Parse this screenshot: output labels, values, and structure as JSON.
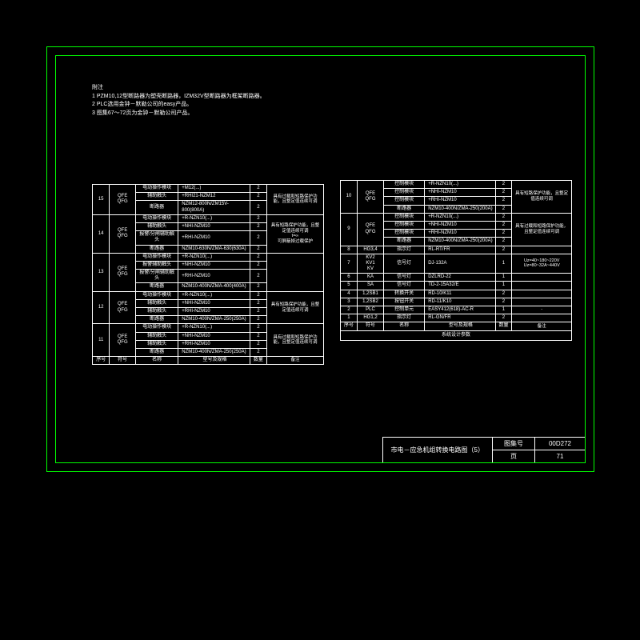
{
  "notes": {
    "title": "附注",
    "lines": [
      "1 PZM10,12型断路器为塑壳断路器，IZM32V型断路器为框架断路器。",
      "2 PLC选用金钟－默勒公司的easy产品。",
      "3 图集67～72页为金钟－默勒公司产品。"
    ]
  },
  "leftTable": {
    "rows": [
      {
        "num": "15",
        "code": "QFE\nQFG",
        "items": [
          {
            "n": "电动操作模块",
            "m": "+M12(...)",
            "q": "2"
          },
          {
            "n": "辅助触头",
            "m": "+RHI21-NZM12",
            "q": "2"
          },
          {
            "n": "断路器",
            "m": "NZM12-800N/ZM15V-800(800A)",
            "q": "2"
          }
        ],
        "remark": "具有过载和短路保护功能，且整定值连续可调"
      },
      {
        "num": "14",
        "code": "QFE\nQFG",
        "items": [
          {
            "n": "电动操作模块",
            "m": "+R-NZN10(...)",
            "q": "2"
          },
          {
            "n": "辅助触头",
            "m": "+NHI-NZM10",
            "q": "2"
          },
          {
            "n": "报警/分闸辅助触头",
            "m": "+RHI-NZM10",
            "q": "2"
          },
          {
            "n": "断路器",
            "m": "NZM10-630N/ZMA-630(630A)",
            "q": "2"
          }
        ],
        "remark": "具有短路保护功能，且整定值连续可调\nt=∞\n可屏蔽掉过载保护"
      },
      {
        "num": "13",
        "code": "QFE\nQFG",
        "items": [
          {
            "n": "电动操作模块",
            "m": "+R-NZN10(...)",
            "q": "2"
          },
          {
            "n": "报警辅助触头",
            "m": "+NHI-NZM10",
            "q": "2"
          },
          {
            "n": "报警/分闸辅助触头",
            "m": "+RHI-NZM10",
            "q": "2"
          },
          {
            "n": "断路器",
            "m": "NZM10-400N/ZMA-400(400A)",
            "q": "2"
          }
        ],
        "remark": ""
      },
      {
        "num": "12",
        "code": "QFE\nQFG",
        "items": [
          {
            "n": "电动操作模块",
            "m": "+R-NZN10(...)",
            "q": "2"
          },
          {
            "n": "辅助触头",
            "m": "+NHI-NZM10",
            "q": "2"
          },
          {
            "n": "辅助触头",
            "m": "+RHI-NZM10",
            "q": "2"
          },
          {
            "n": "断路器",
            "m": "NZM10-400N/ZMA-250(250A)",
            "q": "2"
          }
        ],
        "remark": "具有短路保护功能，且整定值连续可调"
      },
      {
        "num": "11",
        "code": "QFE\nQFG",
        "items": [
          {
            "n": "电动操作模块",
            "m": "+R-NZN10(...)",
            "q": "2"
          },
          {
            "n": "辅助触头",
            "m": "+NHI-NZM10",
            "q": "2"
          },
          {
            "n": "辅助触头",
            "m": "+RHI-NZM10",
            "q": "2"
          },
          {
            "n": "断路器",
            "m": "NZM10-400N/ZMA-250(250A)",
            "q": "2"
          }
        ],
        "remark": "具有过载和短路保护功能，且整定值连续可调"
      }
    ],
    "headers": [
      "序号",
      "符号",
      "名称",
      "型号及规格",
      "数量",
      "备注"
    ]
  },
  "rightTable": {
    "rows": [
      {
        "num": "10",
        "code": "QFE\nQFG",
        "items": [
          {
            "n": "控制模块",
            "m": "+R-NZN10(...)",
            "q": "2"
          },
          {
            "n": "控制模块",
            "m": "+NHI-NZM10",
            "q": "2"
          },
          {
            "n": "控制模块",
            "m": "+RHI-NZM10",
            "q": "2"
          },
          {
            "n": "断路器",
            "m": "NZM10-400N/ZMA-250(200A)",
            "q": "2"
          }
        ],
        "remark": "具有短路保护功能，且整定值连续可调"
      },
      {
        "num": "9",
        "code": "QFE\nQFG",
        "items": [
          {
            "n": "控制模块",
            "m": "+R-NZN10(...)",
            "q": "2"
          },
          {
            "n": "控制模块",
            "m": "+NHI-NZM10",
            "q": "2"
          },
          {
            "n": "控制模块",
            "m": "+RHI-NZM10",
            "q": "2"
          },
          {
            "n": "断路器",
            "m": "NZM10-400N/ZMA-250(200A)",
            "q": "2"
          }
        ],
        "remark": "具有过载和短路保护功能，且整定值连续可调"
      },
      {
        "num": "8",
        "code": "HG3,4",
        "items": [
          {
            "n": "指示灯",
            "m": "RL-RT/FR",
            "q": "2"
          }
        ],
        "remark": ""
      },
      {
        "num": "7",
        "code": "KV2\nKV1\nKV",
        "items": [
          {
            "n": "信号灯",
            "m": "DJ-132A",
            "q": "1"
          }
        ],
        "remark": "Uz=40~180~220V\nUz=80~32A~440V"
      },
      {
        "num": "6",
        "code": "KA",
        "items": [
          {
            "n": "信号灯",
            "m": "DZLRD-22",
            "q": "1"
          }
        ],
        "remark": ""
      },
      {
        "num": "5",
        "code": "SA",
        "items": [
          {
            "n": "信号灯",
            "m": "TD-2-15A32/E",
            "q": "1"
          }
        ],
        "remark": ""
      },
      {
        "num": "4",
        "code": "1,2SB1",
        "items": [
          {
            "n": "转换开关",
            "m": "RD-10/K11",
            "q": "2"
          }
        ],
        "remark": ""
      },
      {
        "num": "3",
        "code": "1,2SB2",
        "items": [
          {
            "n": "按钮开关",
            "m": "RD-11/K10",
            "q": "2"
          }
        ],
        "remark": ""
      },
      {
        "num": "2",
        "code": "PLC",
        "items": [
          {
            "n": "控制单元",
            "m": "EASY412(618)-AC-R",
            "q": "1"
          }
        ],
        "remark": "-"
      },
      {
        "num": "1",
        "code": "HG1,2",
        "items": [
          {
            "n": "指示灯",
            "m": "RL-GN/FR",
            "q": "2"
          }
        ],
        "remark": ""
      }
    ],
    "headers": [
      "序号",
      "符号",
      "名称",
      "型号及规格",
      "数量",
      "备注"
    ],
    "footer": "系统设计参数"
  },
  "titleBlock": {
    "title": "市电－应急机组转换电路图（5）",
    "setLabel": "图集号",
    "setVal": "00D272",
    "pageLabel": "页",
    "pageVal": "71"
  },
  "colors": {
    "frame": "#00ff00",
    "line": "#ffffff",
    "bg": "#000000"
  }
}
